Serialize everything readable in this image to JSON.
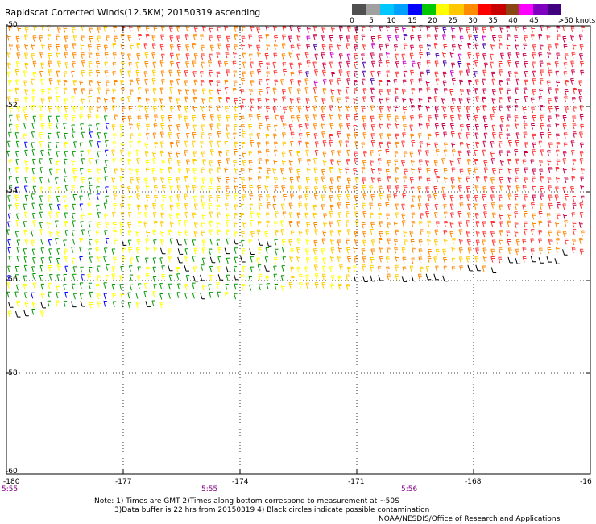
{
  "title": "Rapidscat Corrected Winds(12.5KM) 20150319 ascending",
  "legend": {
    "labels": [
      "0",
      "5",
      "10",
      "15",
      "20",
      "25",
      "30",
      "35",
      "40",
      "45",
      ">50 knots"
    ],
    "colors": [
      "#505050",
      "#a0a0a0",
      "#00c8ff",
      "#00a0ff",
      "#0000ff",
      "#00c800",
      "#ffff00",
      "#ffc800",
      "#ff8c00",
      "#ff0000",
      "#c80000",
      "#8b4513",
      "#ff00ff",
      "#8000c0",
      "#400080"
    ]
  },
  "axes": {
    "lat_labels": [
      "-50",
      "-52",
      "-54",
      "-56",
      "-58",
      "-60"
    ],
    "lon_labels": [
      "-180",
      "-177",
      "-174",
      "-171",
      "-168",
      "-16"
    ],
    "times": [
      "5:55",
      "5:55",
      "5:56"
    ]
  },
  "wind_colors": {
    "calm": "#000000",
    "light": "#009900",
    "moderate": "#ffff00",
    "fresh": "#ffcc00",
    "strong": "#ff8800",
    "gale": "#ff3333",
    "storm": "#cc0044",
    "violent": "#cc00cc",
    "extreme": "#4400aa",
    "weak_blue": "#0000ff"
  },
  "notes": {
    "line1": "Note: 1) Times are GMT 2)Times along bottom correspond to measurement at ~50S",
    "line2": "3)Data buffer is 22 hrs from 20150319 4) Black circles indicate possible contamination",
    "line3": "NOAA/NESDIS/Office of Research and Applications"
  }
}
